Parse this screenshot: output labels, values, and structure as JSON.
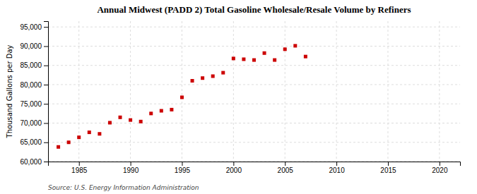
{
  "chart_data": {
    "type": "scatter",
    "title": "Annual Midwest (PADD 2) Total Gasoline Wholesale/Resale Volume by Refiners",
    "y_label": "Thousand Gallons per Day",
    "source": "Source: U.S. Energy Information Administration",
    "x": [
      1983,
      1984,
      1985,
      1986,
      1987,
      1988,
      1989,
      1990,
      1991,
      1992,
      1993,
      1994,
      1995,
      1996,
      1997,
      1998,
      1999,
      2000,
      2001,
      2002,
      2003,
      2004,
      2005,
      2006,
      2007
    ],
    "values": [
      63800,
      65000,
      66300,
      67600,
      67200,
      70100,
      71500,
      70800,
      70400,
      72500,
      73200,
      73500,
      76700,
      81000,
      81700,
      82200,
      83100,
      86800,
      86600,
      86400,
      88200,
      86400,
      89200,
      90100,
      87300
    ],
    "color": "#cc0000",
    "marker": "square",
    "xlim": [
      1982,
      2022
    ],
    "ylim": [
      60000,
      96500
    ],
    "xticks": [
      1985,
      1990,
      1995,
      2000,
      2005,
      2010,
      2015,
      2020
    ],
    "yticks": [
      {
        "value": 60000,
        "label": "60,000"
      },
      {
        "value": 65000,
        "label": "65,000"
      },
      {
        "value": 70000,
        "label": "70,000"
      },
      {
        "value": 75000,
        "label": "75,000"
      },
      {
        "value": 80000,
        "label": "80,000"
      },
      {
        "value": 85000,
        "label": "85,000"
      },
      {
        "value": 90000,
        "label": "90,000"
      },
      {
        "value": 95000,
        "label": "95,000"
      }
    ],
    "grid": true
  }
}
